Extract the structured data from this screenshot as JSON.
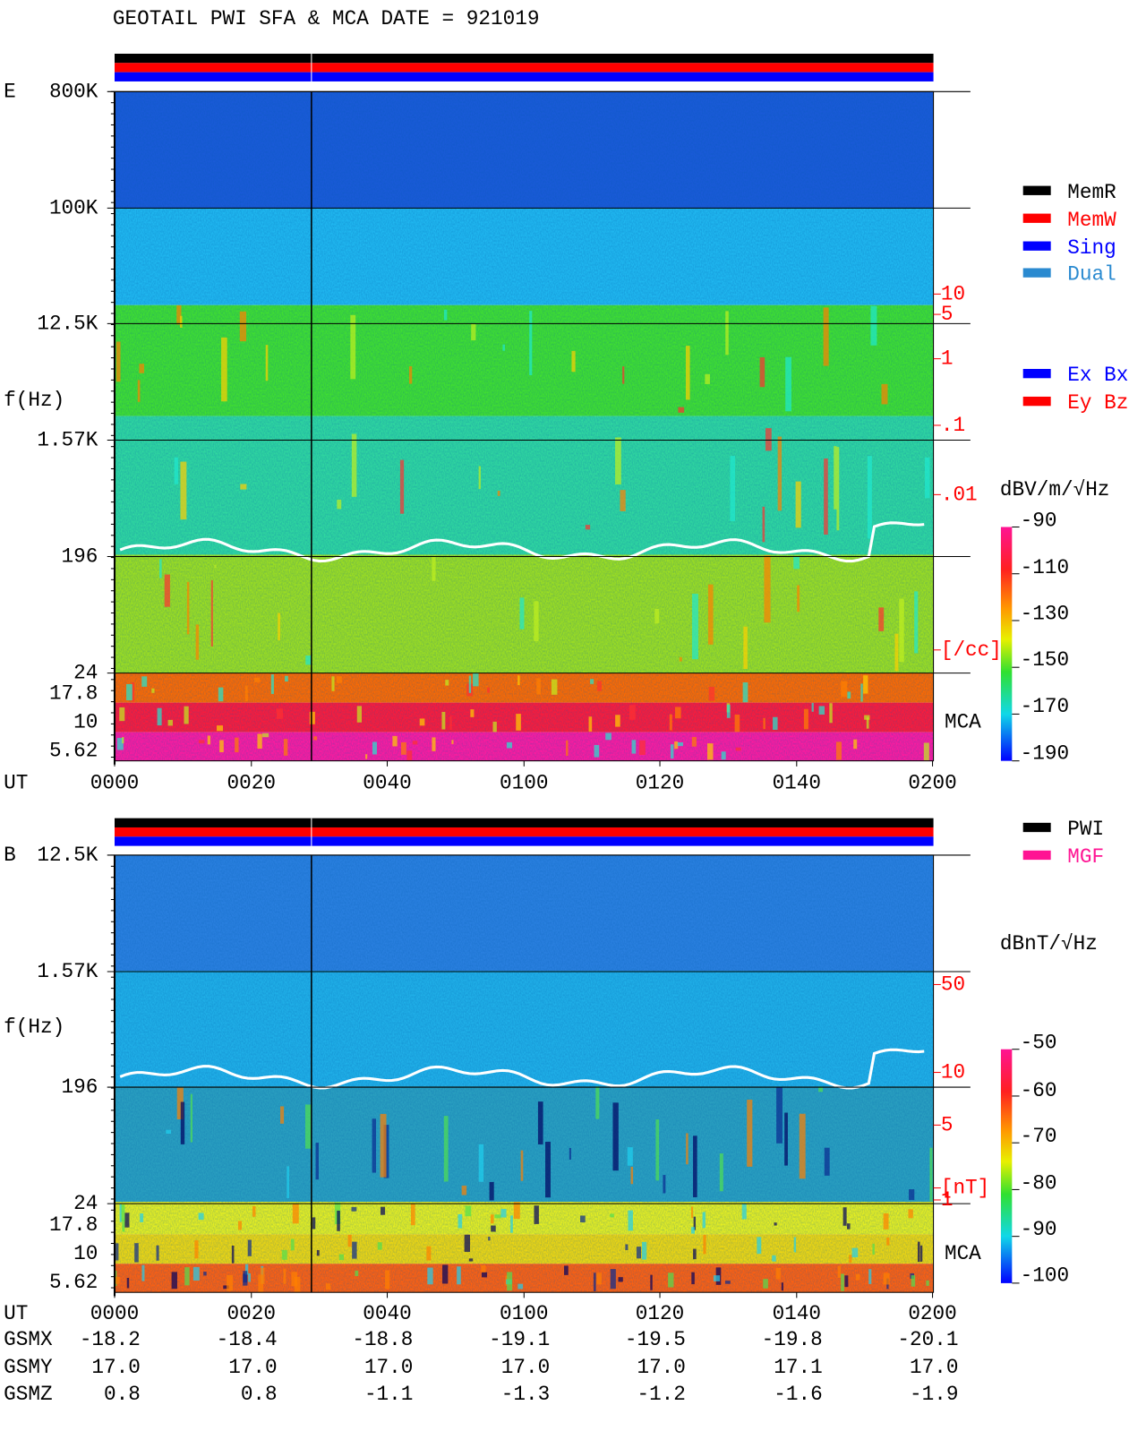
{
  "title": "GEOTAIL   PWI SFA & MCA   DATE = 921019",
  "panels": [
    {
      "label": "E",
      "y_label": "f(Hz)",
      "y_ticks": [
        "800K",
        "100K",
        "12.5K",
        "1.57K",
        "196",
        "24",
        "17.8",
        "10",
        "5.62"
      ],
      "right_ticks": [
        "10",
        "5",
        "1",
        ".1",
        ".01",
        "[/cc]"
      ],
      "mca": "MCA",
      "x_label": "UT",
      "x_ticks": [
        "0000",
        "0020",
        "0040",
        "0100",
        "0120",
        "0140",
        "0200"
      ],
      "legend": [
        {
          "text": "MemR",
          "color": "#000000"
        },
        {
          "text": "MemW",
          "color": "#ff0000"
        },
        {
          "text": "Sing",
          "color": "#0000ff"
        },
        {
          "text": "Dual",
          "color": "#2a8ad0"
        },
        {
          "text": "Ex Bx",
          "color": "#0000ff"
        },
        {
          "text": "Ey Bz",
          "color": "#ff0000"
        }
      ],
      "colorbar": {
        "unit": "dBV/m/√Hz",
        "ticks": [
          "-90",
          "-110",
          "-130",
          "-150",
          "-170",
          "-190"
        ]
      }
    },
    {
      "label": "B",
      "y_label": "f(Hz)",
      "y_ticks": [
        "12.5K",
        "1.57K",
        "196",
        "24",
        "17.8",
        "10",
        "5.62"
      ],
      "right_ticks": [
        "50",
        "10",
        "5",
        "[nT]",
        "1"
      ],
      "mca": "MCA",
      "x_label": "UT",
      "x_ticks": [
        "0000",
        "0020",
        "0040",
        "0100",
        "0120",
        "0140",
        "0200"
      ],
      "legend": [
        {
          "text": "PWI",
          "color": "#000000"
        },
        {
          "text": "MGF",
          "color": "#ff1493"
        }
      ],
      "colorbar": {
        "unit": "dBnT/√Hz",
        "ticks": [
          "-50",
          "-60",
          "-70",
          "-80",
          "-90",
          "-100"
        ]
      }
    }
  ],
  "orbit": [
    {
      "label": "GSMX",
      "values": [
        "-18.2",
        "-18.4",
        "-18.8",
        "-19.1",
        "-19.5",
        "-19.8",
        "-20.1"
      ]
    },
    {
      "label": "GSMY",
      "values": [
        "17.0",
        "17.0",
        "17.0",
        "17.0",
        "17.0",
        "17.1",
        "17.0"
      ]
    },
    {
      "label": "GSMZ",
      "values": [
        "0.8",
        "0.8",
        "-1.1",
        "-1.3",
        "-1.2",
        "-1.6",
        "-1.9"
      ]
    }
  ]
}
